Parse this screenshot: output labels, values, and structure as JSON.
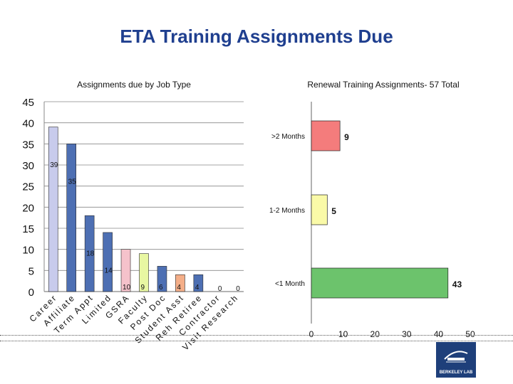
{
  "slide": {
    "title": "ETA Training Assignments Due"
  },
  "logo": {
    "text": "BERKELEY LAB"
  },
  "colors": {
    "title": "#1f3f8f"
  },
  "chart_data": [
    {
      "type": "bar",
      "title": "Assignments due by Job Type",
      "categories": [
        "Career",
        "Affiliate",
        "Term Appt",
        "Limited",
        "GSRA",
        "Faculty",
        "Post Doc",
        "Student Asst",
        "Reh Retiree",
        "Contractor",
        "Visit Research"
      ],
      "values": [
        39,
        35,
        18,
        14,
        10,
        9,
        6,
        4,
        4,
        0,
        0
      ],
      "colors": [
        "#c8cbec",
        "#4d6fb3",
        "#4d6fb3",
        "#4d6fb3",
        "#f5c2cb",
        "#e8f7a2",
        "#4d6fb3",
        "#f4ae88",
        "#4d6fb3",
        "#4d6fb3",
        "#4d6fb3"
      ],
      "yticks": [
        0,
        5,
        10,
        15,
        20,
        25,
        30,
        35,
        40,
        45
      ],
      "ylim": [
        0,
        45
      ],
      "grid": true
    },
    {
      "type": "bar",
      "orientation": "horizontal",
      "title": "Renewal Training Assignments- 57 Total",
      "categories": [
        ">2 Months",
        "1-2 Months",
        "<1 Month"
      ],
      "values": [
        9,
        5,
        43
      ],
      "colors": [
        "#f47c7c",
        "#fafaa8",
        "#6cc36c"
      ],
      "xticks": [
        0,
        10,
        20,
        30,
        40,
        50
      ],
      "xlim": [
        0,
        50
      ]
    }
  ]
}
